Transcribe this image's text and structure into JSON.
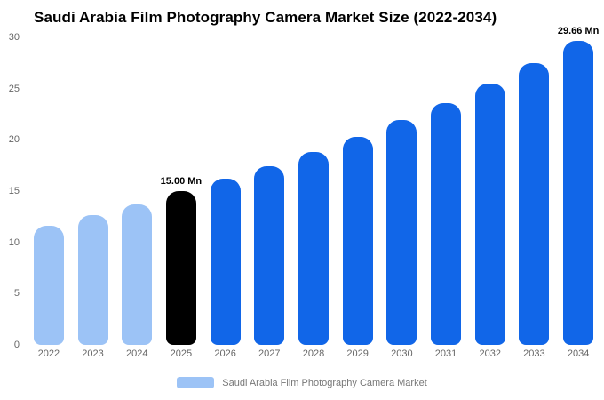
{
  "title": "Saudi Arabia Film Photography Camera Market Size (2022-2034)",
  "legend": {
    "label": "Saudi Arabia Film Photography Camera Market",
    "swatch_color": "#9cc3f6"
  },
  "colors": {
    "historical": "#9cc3f6",
    "base_year": "#000000",
    "forecast": "#1166e8",
    "axis_text": "#666666",
    "title_text": "#000000"
  },
  "chart_data": {
    "type": "bar",
    "title": "Saudi Arabia Film Photography Camera Market Size (2022-2034)",
    "categories": [
      "2022",
      "2023",
      "2024",
      "2025",
      "2026",
      "2027",
      "2028",
      "2029",
      "2030",
      "2031",
      "2032",
      "2033",
      "2034"
    ],
    "values": [
      11.6,
      12.7,
      13.7,
      15.0,
      16.18,
      17.45,
      18.82,
      20.3,
      21.9,
      23.62,
      25.48,
      27.49,
      29.66
    ],
    "unit": "Mn",
    "bar_colors": [
      "#9cc3f6",
      "#9cc3f6",
      "#9cc3f6",
      "#000000",
      "#1166e8",
      "#1166e8",
      "#1166e8",
      "#1166e8",
      "#1166e8",
      "#1166e8",
      "#1166e8",
      "#1166e8",
      "#1166e8"
    ],
    "annotations": [
      {
        "category": "2025",
        "text": "15.00 Mn"
      },
      {
        "category": "2034",
        "text": "29.66 Mn"
      }
    ],
    "xlabel": "",
    "ylabel": "",
    "ylim": [
      0,
      30
    ],
    "yticks": [
      0,
      5,
      10,
      15,
      20,
      25,
      30
    ],
    "grid": false,
    "legend_position": "bottom"
  }
}
